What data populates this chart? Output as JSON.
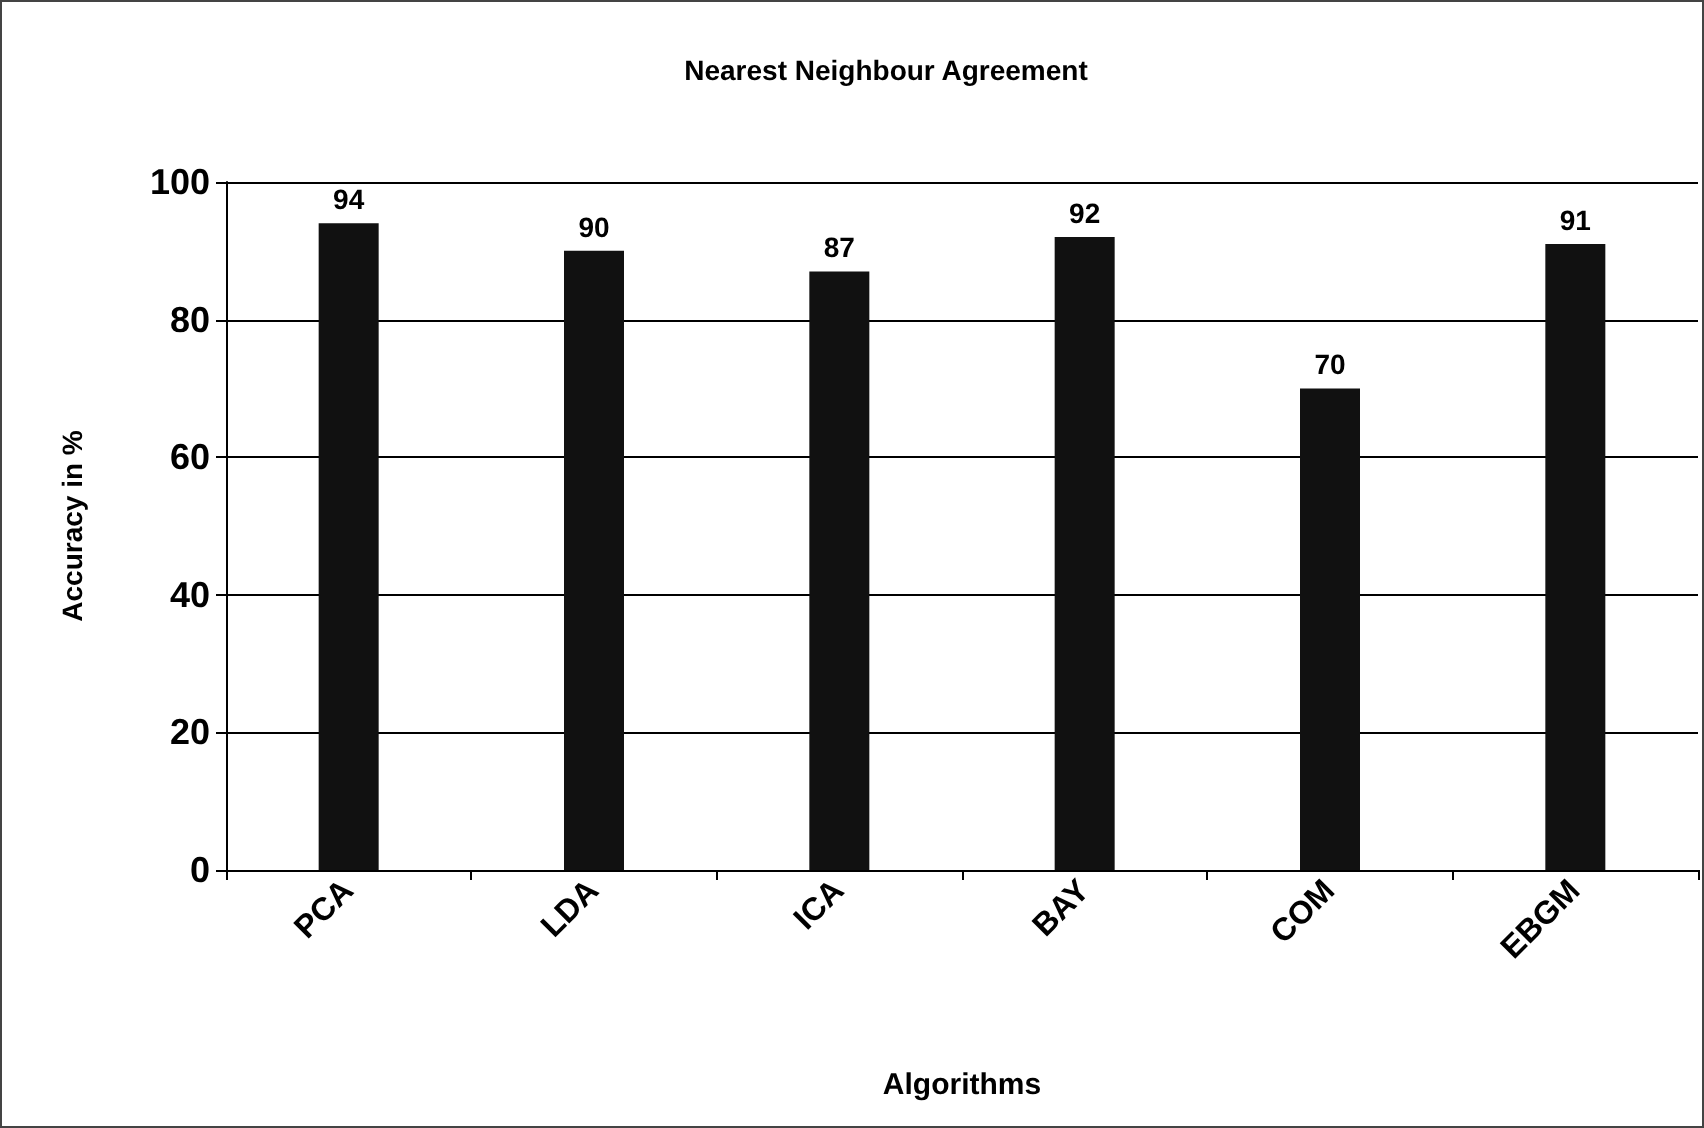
{
  "chart_data": {
    "type": "bar",
    "title": "Nearest Neighbour Agreement",
    "xlabel": "Algorithms",
    "ylabel": "Accuracy in %",
    "categories": [
      "PCA",
      "LDA",
      "ICA",
      "BAY",
      "COM",
      "EBGM"
    ],
    "values": [
      94,
      90,
      87,
      92,
      70,
      91
    ],
    "color": "#111111",
    "ylim": [
      0,
      100
    ],
    "yticks": [
      0,
      20,
      40,
      60,
      80,
      100
    ],
    "grid": "y",
    "data_labels": true
  }
}
